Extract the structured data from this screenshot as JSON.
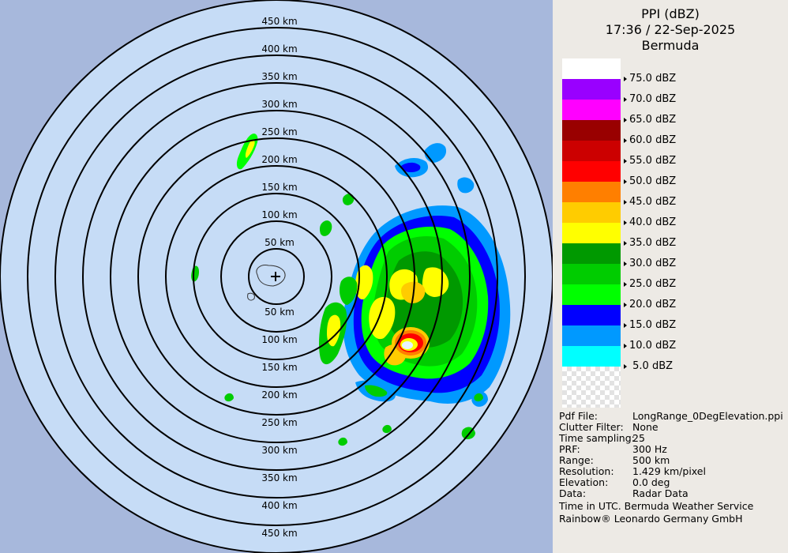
{
  "header": {
    "product": "PPI (dBZ)",
    "datetime": "17:36 / 22-Sep-2025",
    "site": "Bermuda"
  },
  "range_rings_km": [
    50,
    100,
    150,
    200,
    250,
    300,
    350,
    400,
    450
  ],
  "legend": [
    {
      "label": "75.0 dBZ",
      "color": "#ffffff"
    },
    {
      "label": "70.0 dBZ",
      "color": "#9900ff"
    },
    {
      "label": "65.0 dBZ",
      "color": "#ff00ff"
    },
    {
      "label": "60.0 dBZ",
      "color": "#990000"
    },
    {
      "label": "55.0 dBZ",
      "color": "#cc0000"
    },
    {
      "label": "50.0 dBZ",
      "color": "#ff0000"
    },
    {
      "label": "45.0 dBZ",
      "color": "#ff7f00"
    },
    {
      "label": "40.0 dBZ",
      "color": "#ffcc00"
    },
    {
      "label": "35.0 dBZ",
      "color": "#ffff00"
    },
    {
      "label": "30.0 dBZ",
      "color": "#009900"
    },
    {
      "label": "25.0 dBZ",
      "color": "#00cc00"
    },
    {
      "label": "20.0 dBZ",
      "color": "#00ff00"
    },
    {
      "label": "15.0 dBZ",
      "color": "#0000ff"
    },
    {
      "label": "10.0 dBZ",
      "color": "#0099ff"
    },
    {
      "label": "5.0 dBZ",
      "color": "#00ffff"
    }
  ],
  "metadata": [
    {
      "key": "Pdf File:",
      "value": "LongRange_0DegElevation.ppi"
    },
    {
      "key": "Clutter Filter:",
      "value": "None"
    },
    {
      "key": "Time sampling:",
      "value": "25"
    },
    {
      "key": "PRF:",
      "value": "300 Hz"
    },
    {
      "key": "Range:",
      "value": "500 km"
    },
    {
      "key": "Resolution:",
      "value": "1.429 km/pixel"
    },
    {
      "key": "Elevation:",
      "value": "0.0 deg"
    },
    {
      "key": "Data:",
      "value": "Radar Data"
    }
  ],
  "footer": {
    "line1": "Time in UTC. Bermuda Weather Service",
    "line2": "Rainbow® Leonardo Germany GmbH"
  },
  "colors": {
    "inside_range": "#c6dcf6",
    "outside_range": "#a7b8dc",
    "ring": "#000000",
    "panel": "#edeae5"
  }
}
